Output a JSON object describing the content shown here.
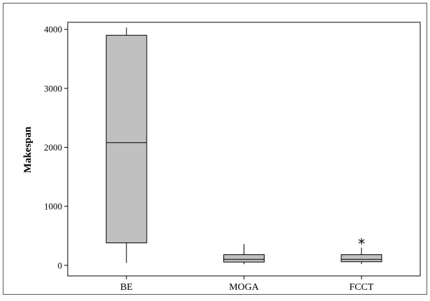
{
  "chart_data": {
    "type": "box",
    "title": "",
    "xlabel": "",
    "ylabel": "Makespan",
    "ylim": [
      -180,
      4120
    ],
    "y_ticks": [
      0,
      1000,
      2000,
      3000,
      4000
    ],
    "categories": [
      "BE",
      "MOGA",
      "FCCT"
    ],
    "boxes": [
      {
        "label": "BE",
        "min": 40,
        "q1": 380,
        "median": 2080,
        "q3": 3900,
        "max": 4030,
        "outliers": []
      },
      {
        "label": "MOGA",
        "min": 20,
        "q1": 55,
        "median": 100,
        "q3": 180,
        "max": 360,
        "outliers": []
      },
      {
        "label": "FCCT",
        "min": 20,
        "q1": 60,
        "median": 100,
        "q3": 180,
        "max": 300,
        "outliers": [
          410
        ]
      }
    ],
    "grid": false,
    "colors": {
      "box_fill": "#c0c0c0",
      "stroke": "#000000",
      "background": "#ffffff"
    }
  }
}
